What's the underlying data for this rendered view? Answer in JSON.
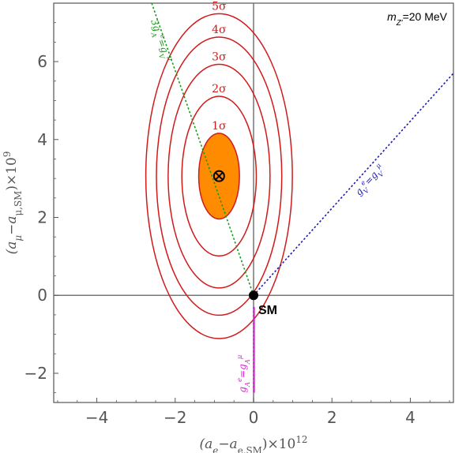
{
  "chart_data": {
    "type": "contour",
    "annotation": "m_{Z'}=20 MeV",
    "xlabel": "(a_e−a_{e,SM})×10^12",
    "ylabel": "(a_μ−a_{μ,SM})×10^9",
    "xlim": [
      -5.1,
      5.1
    ],
    "ylim": [
      -2.75,
      7.5
    ],
    "xticks": [
      -4,
      -2,
      0,
      2,
      4
    ],
    "yticks": [
      -2,
      0,
      2,
      4,
      6
    ],
    "xtick_labels": [
      "−4",
      "−2",
      "0",
      "2",
      "4"
    ],
    "ytick_labels": [
      "−2",
      "0",
      "2",
      "4",
      "6"
    ],
    "grid": false,
    "central_value": {
      "x": -0.88,
      "y": 3.06
    },
    "sigma_contours": [
      {
        "label": "1σ",
        "rx": 0.52,
        "ry": 1.1,
        "filled": true
      },
      {
        "label": "2σ",
        "rx": 0.95,
        "ry": 2.05,
        "filled": false
      },
      {
        "label": "3σ",
        "rx": 1.3,
        "ry": 2.87,
        "filled": false
      },
      {
        "label": "4σ",
        "rx": 1.6,
        "ry": 3.57,
        "filled": false
      },
      {
        "label": "5σ",
        "rx": 1.87,
        "ry": 4.17,
        "filled": false
      }
    ],
    "lines": [
      {
        "name": "3g_A^e=g_V^μ",
        "color": "#1a9a1a",
        "x": [
          -2.6,
          0.0
        ],
        "y": [
          7.5,
          0.0
        ]
      },
      {
        "name": "g_V^e=g_V^μ",
        "color": "#1a1ab8",
        "x": [
          0.0,
          5.1
        ],
        "y": [
          0.0,
          5.7
        ]
      },
      {
        "name": "g_A^e=g_A^μ",
        "color": "#d61ad6",
        "x": [
          0.0,
          0.0
        ],
        "y": [
          -0.3,
          -2.5
        ]
      }
    ],
    "reference_point": {
      "label": "SM",
      "x": 0,
      "y": 0
    },
    "colors": {
      "contour": "#d11a1a",
      "fill": "#ff8c00",
      "axis": "#777777",
      "frame": "#555555"
    }
  }
}
